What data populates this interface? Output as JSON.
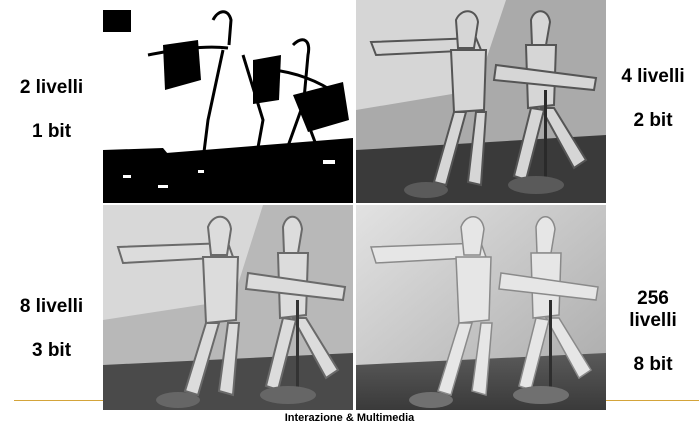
{
  "panels": [
    {
      "levels_text": "2 livelli",
      "bits_text": "1 bit"
    },
    {
      "levels_text": "4 livelli",
      "bits_text": "2 bit"
    },
    {
      "levels_text": "8 livelli",
      "bits_text": "3 bit"
    },
    {
      "levels_text": "256\nlivelli",
      "bits_text": "8 bit"
    }
  ],
  "footer": {
    "text": "Interazione & Multimedia",
    "line_color": "#d4a43a"
  }
}
